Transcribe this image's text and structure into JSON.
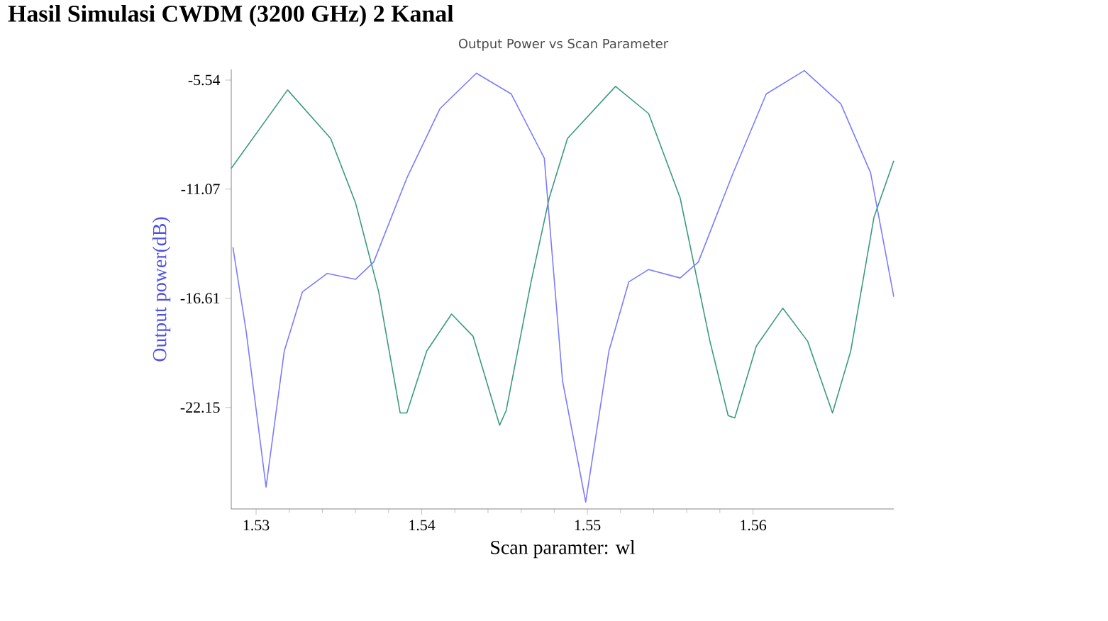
{
  "chart_data": {
    "type": "line",
    "title": "Hasil Simulasi CWDM (3200 GHz) 2 Kanal",
    "subtitle": "Output Power vs Scan Parameter",
    "xlabel": "Scan paramter:  wl",
    "ylabel": "Output power(dB)",
    "xlim": [
      1.5285,
      1.5685
    ],
    "ylim": [
      -27.3,
      -5
    ],
    "xticks": [
      1.53,
      1.54,
      1.55,
      1.56
    ],
    "yticks": [
      -5.54,
      -11.07,
      -16.61,
      -22.15
    ],
    "grid": false,
    "marker": "none",
    "line_style": "solid",
    "series": [
      {
        "color": "#3a9a80",
        "x": [
          1.5285,
          1.5319,
          1.5345,
          1.536,
          1.5374,
          1.5387,
          1.5391,
          1.5403,
          1.5418,
          1.5431,
          1.5447,
          1.5451,
          1.5466,
          1.5477,
          1.5488,
          1.5517,
          1.5537,
          1.5556,
          1.5574,
          1.5585,
          1.5589,
          1.5602,
          1.5618,
          1.5633,
          1.5648,
          1.5659,
          1.5673,
          1.5685
        ],
        "values": [
          -10.02,
          -6.04,
          -8.5,
          -11.76,
          -16.28,
          -22.43,
          -22.43,
          -19.29,
          -17.41,
          -18.54,
          -23.05,
          -22.3,
          -15.78,
          -11.51,
          -8.5,
          -5.86,
          -7.24,
          -11.51,
          -18.79,
          -22.56,
          -22.68,
          -19.04,
          -17.11,
          -18.79,
          -22.43,
          -19.29,
          -12.51,
          -9.63
        ]
      },
      {
        "color": "#7b7bff",
        "x": [
          1.5286,
          1.5294,
          1.5306,
          1.5317,
          1.5328,
          1.5343,
          1.536,
          1.5371,
          1.5391,
          1.5411,
          1.5433,
          1.5454,
          1.5474,
          1.5485,
          1.5499,
          1.5513,
          1.5525,
          1.5537,
          1.5556,
          1.5567,
          1.5588,
          1.5608,
          1.5631,
          1.5653,
          1.5671,
          1.5685
        ],
        "values": [
          -14.02,
          -18.29,
          -26.19,
          -19.29,
          -16.28,
          -15.35,
          -15.65,
          -14.77,
          -10.51,
          -6.99,
          -5.19,
          -6.24,
          -9.5,
          -20.8,
          -26.95,
          -19.29,
          -15.78,
          -15.15,
          -15.58,
          -14.77,
          -10.25,
          -6.24,
          -5.06,
          -6.74,
          -10.25,
          -16.53
        ]
      }
    ]
  }
}
